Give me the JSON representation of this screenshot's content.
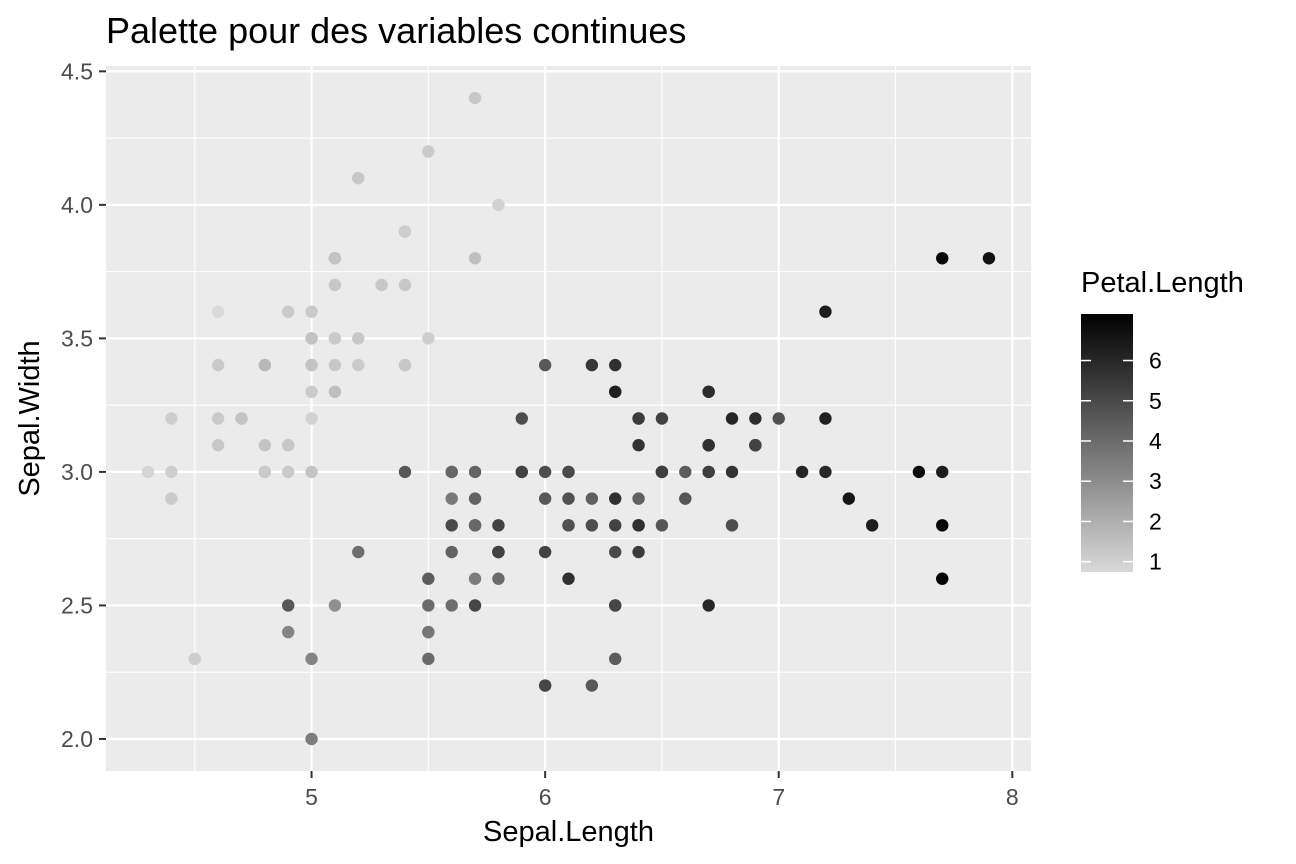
{
  "chart_data": {
    "type": "scatter",
    "title": "Palette pour des variables continues",
    "xlabel": "Sepal.Length",
    "ylabel": "Sepal.Width",
    "xlim": [
      4.12,
      8.08
    ],
    "ylim": [
      1.88,
      4.52
    ],
    "x_ticks": [
      5,
      6,
      7,
      8
    ],
    "y_ticks": [
      2.0,
      2.5,
      3.0,
      3.5,
      4.0,
      4.5
    ],
    "y_tick_labels": [
      "2.0",
      "2.5",
      "3.0",
      "3.5",
      "4.0",
      "4.5"
    ],
    "grid": true,
    "legend": {
      "title": "Petal.Length",
      "placement": "right",
      "min": 1.0,
      "max": 6.9,
      "ticks": [
        1,
        2,
        3,
        4,
        5,
        6
      ],
      "color_low": "#d9d9d9",
      "color_high": "#000000"
    },
    "colors": {
      "panel_background": "#ebebeb",
      "grid": "#ffffff",
      "axis_text": "#4d4d4d",
      "tick_mark": "#333333"
    },
    "points": [
      [
        5.1,
        3.5,
        1.4
      ],
      [
        4.9,
        3.0,
        1.4
      ],
      [
        4.7,
        3.2,
        1.3
      ],
      [
        4.6,
        3.1,
        1.5
      ],
      [
        5.0,
        3.6,
        1.4
      ],
      [
        5.4,
        3.9,
        1.7
      ],
      [
        4.6,
        3.4,
        1.4
      ],
      [
        5.0,
        3.4,
        1.5
      ],
      [
        4.4,
        2.9,
        1.4
      ],
      [
        4.9,
        3.1,
        1.5
      ],
      [
        5.4,
        3.7,
        1.5
      ],
      [
        4.8,
        3.4,
        1.6
      ],
      [
        4.8,
        3.0,
        1.4
      ],
      [
        4.3,
        3.0,
        1.1
      ],
      [
        5.8,
        4.0,
        1.2
      ],
      [
        5.7,
        4.4,
        1.5
      ],
      [
        5.4,
        3.9,
        1.3
      ],
      [
        5.1,
        3.5,
        1.4
      ],
      [
        5.7,
        3.8,
        1.7
      ],
      [
        5.1,
        3.8,
        1.5
      ],
      [
        5.4,
        3.4,
        1.7
      ],
      [
        5.1,
        3.7,
        1.5
      ],
      [
        4.6,
        3.6,
        1.0
      ],
      [
        5.1,
        3.3,
        1.7
      ],
      [
        4.8,
        3.4,
        1.9
      ],
      [
        5.0,
        3.0,
        1.6
      ],
      [
        5.0,
        3.4,
        1.6
      ],
      [
        5.2,
        3.5,
        1.5
      ],
      [
        5.2,
        3.4,
        1.4
      ],
      [
        4.7,
        3.2,
        1.6
      ],
      [
        4.8,
        3.1,
        1.6
      ],
      [
        5.4,
        3.4,
        1.5
      ],
      [
        5.2,
        4.1,
        1.5
      ],
      [
        5.5,
        4.2,
        1.4
      ],
      [
        4.9,
        3.1,
        1.5
      ],
      [
        5.0,
        3.2,
        1.2
      ],
      [
        5.5,
        3.5,
        1.3
      ],
      [
        4.9,
        3.6,
        1.4
      ],
      [
        4.4,
        3.0,
        1.3
      ],
      [
        5.1,
        3.4,
        1.5
      ],
      [
        5.0,
        3.5,
        1.3
      ],
      [
        4.5,
        2.3,
        1.3
      ],
      [
        4.4,
        3.2,
        1.3
      ],
      [
        5.0,
        3.5,
        1.6
      ],
      [
        5.1,
        3.8,
        1.9
      ],
      [
        4.8,
        3.0,
        1.4
      ],
      [
        5.1,
        3.8,
        1.6
      ],
      [
        4.6,
        3.2,
        1.4
      ],
      [
        5.3,
        3.7,
        1.5
      ],
      [
        5.0,
        3.3,
        1.4
      ],
      [
        7.0,
        3.2,
        4.7
      ],
      [
        6.4,
        3.2,
        4.5
      ],
      [
        6.9,
        3.1,
        4.9
      ],
      [
        5.5,
        2.3,
        4.0
      ],
      [
        6.5,
        2.8,
        4.6
      ],
      [
        5.7,
        2.8,
        4.5
      ],
      [
        6.3,
        3.3,
        4.7
      ],
      [
        4.9,
        2.4,
        3.3
      ],
      [
        6.6,
        2.9,
        4.6
      ],
      [
        5.2,
        2.7,
        3.9
      ],
      [
        5.0,
        2.0,
        3.5
      ],
      [
        5.9,
        3.0,
        4.2
      ],
      [
        6.0,
        2.2,
        4.0
      ],
      [
        6.1,
        2.9,
        4.7
      ],
      [
        5.6,
        2.9,
        3.6
      ],
      [
        6.7,
        3.1,
        4.4
      ],
      [
        5.6,
        3.0,
        4.5
      ],
      [
        5.8,
        2.7,
        4.1
      ],
      [
        6.2,
        2.2,
        4.5
      ],
      [
        5.6,
        2.5,
        3.9
      ],
      [
        5.9,
        3.2,
        4.8
      ],
      [
        6.1,
        2.8,
        4.0
      ],
      [
        6.3,
        2.5,
        4.9
      ],
      [
        6.1,
        2.8,
        4.7
      ],
      [
        6.4,
        2.9,
        4.3
      ],
      [
        6.6,
        3.0,
        4.4
      ],
      [
        6.8,
        2.8,
        4.8
      ],
      [
        6.7,
        3.0,
        5.0
      ],
      [
        6.0,
        2.9,
        4.5
      ],
      [
        5.7,
        2.6,
        3.5
      ],
      [
        5.5,
        2.4,
        3.8
      ],
      [
        5.5,
        2.4,
        3.7
      ],
      [
        5.8,
        2.7,
        3.9
      ],
      [
        6.0,
        2.7,
        5.1
      ],
      [
        5.4,
        3.0,
        4.5
      ],
      [
        6.0,
        3.4,
        4.5
      ],
      [
        6.7,
        3.1,
        4.7
      ],
      [
        6.3,
        2.3,
        4.4
      ],
      [
        5.6,
        3.0,
        4.1
      ],
      [
        5.5,
        2.5,
        4.0
      ],
      [
        5.5,
        2.6,
        4.4
      ],
      [
        6.1,
        3.0,
        4.6
      ],
      [
        5.8,
        2.6,
        4.0
      ],
      [
        5.0,
        2.3,
        3.3
      ],
      [
        5.6,
        2.7,
        4.2
      ],
      [
        5.7,
        3.0,
        4.2
      ],
      [
        5.7,
        2.9,
        4.2
      ],
      [
        6.2,
        2.9,
        4.3
      ],
      [
        5.1,
        2.5,
        3.0
      ],
      [
        5.7,
        2.8,
        4.1
      ],
      [
        6.3,
        3.3,
        6.0
      ],
      [
        5.8,
        2.7,
        5.1
      ],
      [
        7.1,
        3.0,
        5.9
      ],
      [
        6.3,
        2.9,
        5.6
      ],
      [
        6.5,
        3.0,
        5.8
      ],
      [
        7.6,
        3.0,
        6.6
      ],
      [
        4.9,
        2.5,
        4.5
      ],
      [
        7.3,
        2.9,
        6.3
      ],
      [
        6.7,
        2.5,
        5.8
      ],
      [
        7.2,
        3.6,
        6.1
      ],
      [
        6.5,
        3.2,
        5.1
      ],
      [
        6.4,
        2.7,
        5.3
      ],
      [
        6.8,
        3.0,
        5.5
      ],
      [
        5.7,
        2.5,
        5.0
      ],
      [
        5.8,
        2.8,
        5.1
      ],
      [
        6.4,
        3.2,
        5.3
      ],
      [
        6.5,
        3.0,
        5.5
      ],
      [
        7.7,
        3.8,
        6.7
      ],
      [
        7.7,
        2.6,
        6.9
      ],
      [
        6.0,
        2.2,
        5.0
      ],
      [
        6.9,
        3.2,
        5.7
      ],
      [
        5.6,
        2.8,
        4.9
      ],
      [
        7.7,
        2.8,
        6.7
      ],
      [
        6.3,
        2.7,
        4.9
      ],
      [
        6.7,
        3.3,
        5.7
      ],
      [
        7.2,
        3.2,
        6.0
      ],
      [
        6.2,
        2.8,
        4.8
      ],
      [
        6.1,
        3.0,
        4.9
      ],
      [
        6.4,
        2.8,
        5.6
      ],
      [
        7.2,
        3.0,
        5.8
      ],
      [
        7.4,
        2.8,
        6.1
      ],
      [
        7.9,
        3.8,
        6.4
      ],
      [
        6.4,
        2.8,
        5.6
      ],
      [
        6.3,
        2.8,
        5.1
      ],
      [
        6.1,
        2.6,
        5.6
      ],
      [
        7.7,
        3.0,
        6.1
      ],
      [
        6.3,
        3.4,
        5.6
      ],
      [
        6.4,
        3.1,
        5.5
      ],
      [
        6.0,
        3.0,
        4.8
      ],
      [
        6.9,
        3.1,
        5.4
      ],
      [
        6.7,
        3.1,
        5.6
      ],
      [
        6.9,
        3.1,
        5.1
      ],
      [
        5.8,
        2.7,
        5.1
      ],
      [
        6.8,
        3.2,
        5.9
      ],
      [
        6.7,
        3.3,
        5.7
      ],
      [
        6.7,
        3.0,
        5.2
      ],
      [
        6.3,
        2.5,
        5.0
      ],
      [
        6.5,
        3.0,
        5.2
      ],
      [
        6.2,
        3.4,
        5.4
      ],
      [
        5.9,
        3.0,
        5.1
      ]
    ]
  }
}
